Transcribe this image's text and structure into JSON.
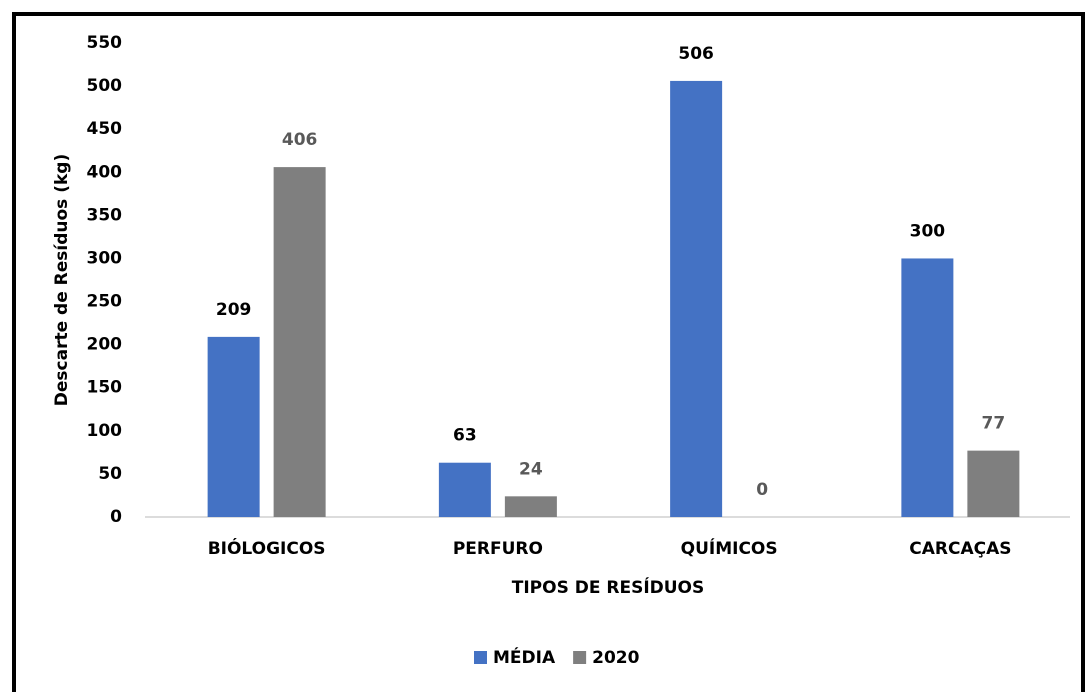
{
  "chart_data": {
    "type": "bar",
    "categories": [
      "BIÓLOGICOS",
      "PERFURO",
      "QUÍMICOS",
      "CARCAÇAS"
    ],
    "series": [
      {
        "name": "MÉDIA",
        "color": "#4472c4",
        "values": [
          209,
          63,
          506,
          300
        ]
      },
      {
        "name": "2020",
        "color": "#7f7f7f",
        "values": [
          406,
          24,
          0,
          77
        ]
      }
    ],
    "x_label": "TIPOS DE RESÍDUOS",
    "y_label": "Descarte de Resíduos (kg)",
    "ylim": [
      0,
      550
    ],
    "yticks": [
      0,
      50,
      100,
      150,
      200,
      250,
      300,
      350,
      400,
      450,
      500,
      550
    ],
    "grid": false,
    "legend": "bottom"
  }
}
